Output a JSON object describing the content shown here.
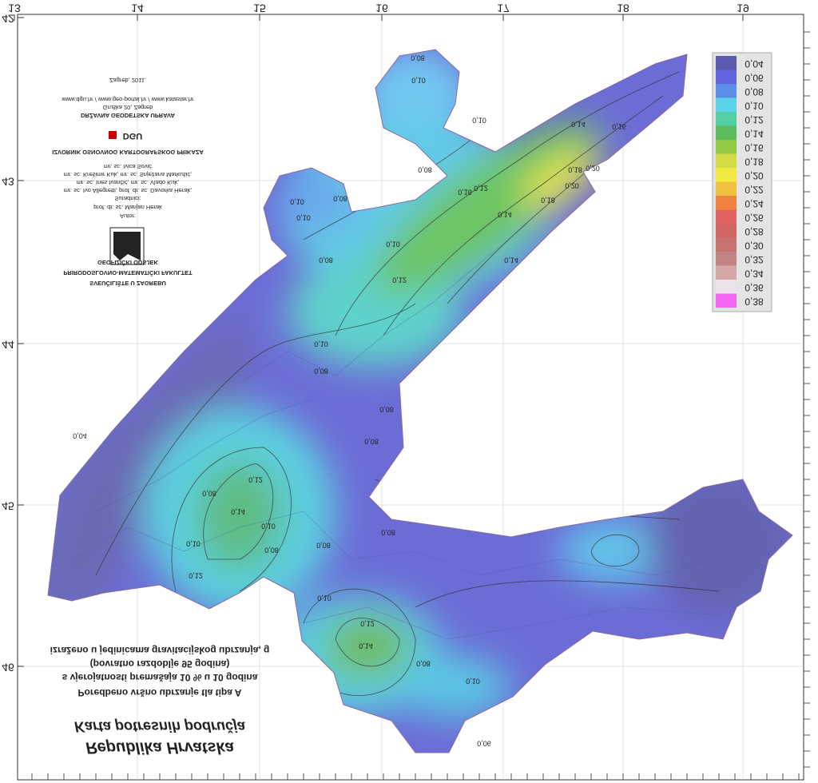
{
  "map": {
    "longitude_ticks": [
      "13",
      "14",
      "15",
      "16",
      "17",
      "18",
      "19"
    ],
    "latitude_ticks": [
      "42",
      "43",
      "44",
      "45",
      "46"
    ],
    "legend": [
      {
        "label": "0,04",
        "color": "#5a5aae"
      },
      {
        "label": "0,06",
        "color": "#6464e0"
      },
      {
        "label": "0,08",
        "color": "#5a8ee8"
      },
      {
        "label": "0,10",
        "color": "#5ad2ea"
      },
      {
        "label": "0,12",
        "color": "#52d0a4"
      },
      {
        "label": "0,14",
        "color": "#5cbc5c"
      },
      {
        "label": "0,16",
        "color": "#92c842"
      },
      {
        "label": "0,18",
        "color": "#d2da44"
      },
      {
        "label": "0,20",
        "color": "#f2ea40"
      },
      {
        "label": "0,22",
        "color": "#f2c040"
      },
      {
        "label": "0,24",
        "color": "#f08240"
      },
      {
        "label": "0,26",
        "color": "#e26262"
      },
      {
        "label": "0,28",
        "color": "#d26464"
      },
      {
        "label": "0,30",
        "color": "#c87272"
      },
      {
        "label": "0,32",
        "color": "#c08484"
      },
      {
        "label": "0,34",
        "color": "#d4a6a6"
      },
      {
        "label": "0,36",
        "color": "#ece2ec"
      },
      {
        "label": "0,38",
        "color": "#f264f2"
      }
    ],
    "title": {
      "lines": [
        "Republika Hrvatska",
        "Karta potresnih područja",
        "Poredbeno vršno ubrzanje tla tipa A",
        "s vjerojatnosti premašaja 10 % u 10 godina",
        "(povratno razdoblje 95 godina)",
        "izraženo u jedinicama gravitacijskog ubrzanja, g"
      ]
    },
    "credits": {
      "lines": [
        "SVEUČILIŠTE U ZAGREBU",
        "PRIRODOSLOVNO-MATEMATIČKI FAKULTET",
        "GEOFIZIČKI ODSJEK",
        "Autor:",
        "prof. dr. sc. Marijan Herak",
        "Suradnici:",
        "mr. sc. Ivo Allegretti, prof. dr. sc. Davorka Herak,",
        "mr. sc. Ines Ivančić, mr. sc. Vlado Kuk,",
        "mr. sc. Krešimir Kuk, mr. sc. Snježana Markušić,",
        "mr. sc. Ivica Sović",
        "IZVORNIK OSNOVNOG KARTOGRAFSKOG PRIKAZA",
        "DGU",
        "DRŽAVNA GEODETSKA UPRAVA",
        "Gruška 20, Zagreb",
        "www.dgu.hr / www.geo-portal.hr / www.katastar.hr",
        "Zagreb, 2011."
      ]
    },
    "contour_labels": [
      "0,08",
      "0,10",
      "0,10",
      "0,08",
      "0,10",
      "0,08",
      "0,10",
      "0,12",
      "0,14",
      "0,16",
      "0,18",
      "0,20",
      "0,20",
      "0,18",
      "0,14",
      "0,16",
      "0,14",
      "0,12",
      "0,10",
      "0,08",
      "0,04",
      "0,08",
      "0,10",
      "0,12",
      "0,14",
      "0,10",
      "0,08",
      "0,12",
      "0,08",
      "0,10",
      "0,08",
      "0,08",
      "0,10",
      "0,08",
      "0,14",
      "0,12",
      "0,10",
      "0,08",
      "0,08",
      "0,06"
    ]
  }
}
